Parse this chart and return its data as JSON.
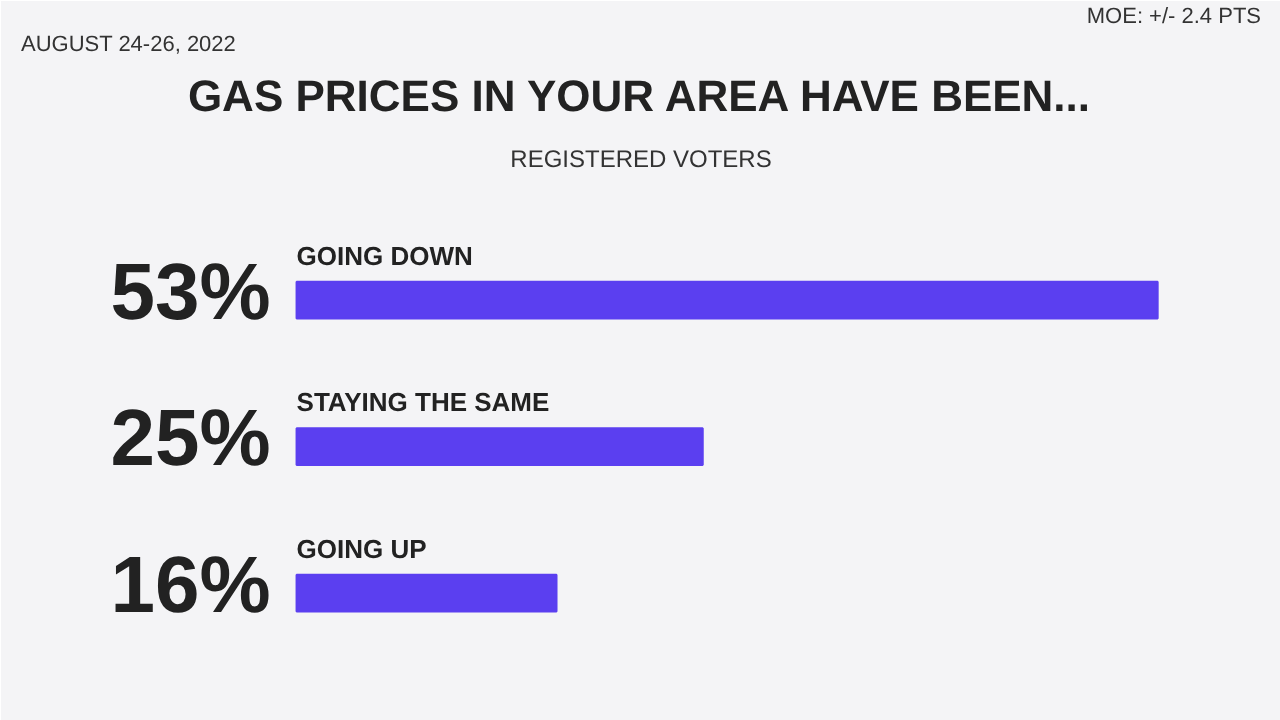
{
  "chart_data": {
    "type": "bar",
    "orientation": "horizontal",
    "title": "GAS PRICES IN YOUR AREA HAVE BEEN...",
    "subtitle": "REGISTERED VOTERS",
    "categories": [
      "GOING DOWN",
      "STAYING THE SAME",
      "GOING UP"
    ],
    "values": [
      53,
      25,
      16
    ],
    "value_labels": [
      "53%",
      "25%",
      "16%"
    ],
    "color": "#5b3ff0",
    "annotations": [
      "AUGUST 24-26, 2022",
      "MOE: +/- 2.4 PTS"
    ]
  }
}
